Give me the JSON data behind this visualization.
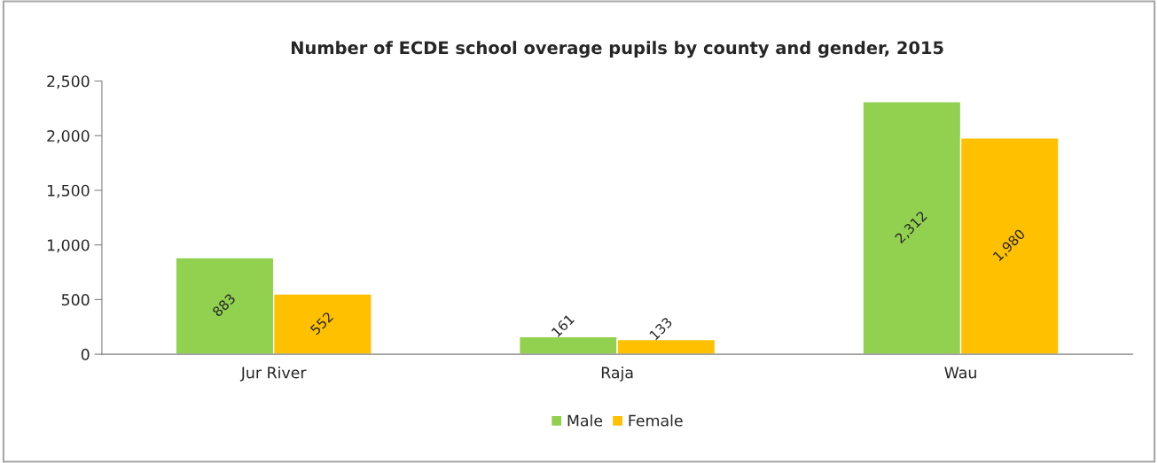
{
  "chart_data": {
    "type": "bar",
    "title": "Number of ECDE school overage pupils by county and gender, 2015",
    "categories": [
      "Jur River",
      "Raja",
      "Wau"
    ],
    "series": [
      {
        "name": "Male",
        "color": "#92d050",
        "values": [
          883,
          161,
          2312
        ],
        "value_labels": [
          "883",
          "161",
          "2,312"
        ]
      },
      {
        "name": "Female",
        "color": "#ffc000",
        "values": [
          552,
          133,
          1980
        ],
        "value_labels": [
          "552",
          "133",
          "1,980"
        ]
      }
    ],
    "ylim": [
      0,
      2500
    ],
    "yticks": [
      {
        "value": 0,
        "label": "0"
      },
      {
        "value": 500,
        "label": "500"
      },
      {
        "value": 1000,
        "label": "1,000"
      },
      {
        "value": 1500,
        "label": "1,500"
      },
      {
        "value": 2000,
        "label": "2,000"
      },
      {
        "value": 2500,
        "label": "2,500"
      }
    ],
    "grid": false,
    "legend": "bottom"
  }
}
